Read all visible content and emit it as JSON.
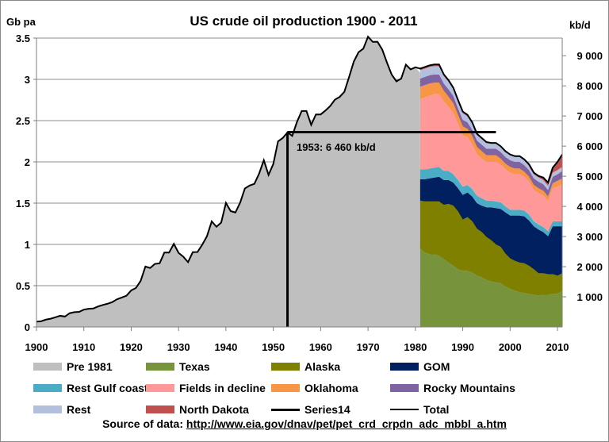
{
  "chart_data": {
    "type": "area",
    "title": "US crude oil production 1900 - 2011",
    "ylabel_left": "Gb pa",
    "ylabel_right": "kb/d",
    "xlim": [
      1900,
      2011
    ],
    "ylim_left": [
      0,
      3.5
    ],
    "ylim_right": [
      0,
      9585
    ],
    "x_ticks": [
      "1900",
      "1910",
      "1920",
      "1930",
      "1940",
      "1950",
      "1960",
      "1970",
      "1980",
      "1990",
      "2000",
      "2010"
    ],
    "y_ticks_left": [
      "0",
      "0.5",
      "1",
      "1.5",
      "2",
      "2.5",
      "3",
      "3.5"
    ],
    "y_ticks_right": [
      "1 000",
      "2 000",
      "3 000",
      "4 000",
      "5 000",
      "6 000",
      "7 000",
      "8 000",
      "9 000"
    ],
    "grid": true,
    "legend_position": "bottom",
    "colors": {
      "pre_1981": "#bfbfbf",
      "texas": "#77933c",
      "alaska": "#7f7f00",
      "gom": "#002060",
      "rest_gulf_coast": "#4bacc6",
      "fields_in_decline": "#ff9999",
      "oklahoma": "#f79646",
      "rocky_mountains": "#8064a2",
      "rest": "#b3bfdd",
      "north_dakota": "#c0504d",
      "series14": "#000000",
      "total": "#000000"
    },
    "pre1981": {
      "x": [
        1900,
        1901,
        1902,
        1903,
        1904,
        1905,
        1906,
        1907,
        1908,
        1909,
        1910,
        1911,
        1912,
        1913,
        1914,
        1915,
        1916,
        1917,
        1918,
        1919,
        1920,
        1921,
        1922,
        1923,
        1924,
        1925,
        1926,
        1927,
        1928,
        1929,
        1930,
        1931,
        1932,
        1933,
        1934,
        1935,
        1936,
        1937,
        1938,
        1939,
        1940,
        1941,
        1942,
        1943,
        1944,
        1945,
        1946,
        1947,
        1948,
        1949,
        1950,
        1951,
        1952,
        1953,
        1954,
        1955,
        1956,
        1957,
        1958,
        1959,
        1960,
        1961,
        1962,
        1963,
        1964,
        1965,
        1966,
        1967,
        1968,
        1969,
        1970,
        1971,
        1972,
        1973,
        1974,
        1975,
        1976,
        1977,
        1978,
        1979,
        1980
      ],
      "values": [
        0.064,
        0.069,
        0.089,
        0.1,
        0.117,
        0.135,
        0.126,
        0.166,
        0.179,
        0.183,
        0.21,
        0.22,
        0.223,
        0.248,
        0.266,
        0.281,
        0.301,
        0.335,
        0.356,
        0.378,
        0.443,
        0.472,
        0.558,
        0.732,
        0.714,
        0.764,
        0.771,
        0.901,
        0.901,
        1.007,
        0.898,
        0.851,
        0.785,
        0.906,
        0.908,
        0.997,
        1.1,
        1.279,
        1.214,
        1.265,
        1.503,
        1.404,
        1.387,
        1.506,
        1.678,
        1.714,
        1.734,
        1.857,
        2.02,
        1.842,
        1.974,
        2.248,
        2.29,
        2.357,
        2.315,
        2.484,
        2.617,
        2.617,
        2.449,
        2.575,
        2.575,
        2.622,
        2.676,
        2.753,
        2.787,
        2.849,
        3.028,
        3.216,
        3.329,
        3.372,
        3.517,
        3.454,
        3.455,
        3.361,
        3.203,
        3.057,
        2.976,
        3.009,
        3.178,
        3.121,
        3.146
      ]
    },
    "stack_x": [
      1981,
      1982,
      1983,
      1984,
      1985,
      1986,
      1987,
      1988,
      1989,
      1990,
      1991,
      1992,
      1993,
      1994,
      1995,
      1996,
      1997,
      1998,
      1999,
      2000,
      2001,
      2002,
      2003,
      2004,
      2005,
      2006,
      2007,
      2008,
      2009,
      2010,
      2011
    ],
    "series": [
      {
        "name": "Texas",
        "values": [
          0.95,
          0.9,
          0.88,
          0.88,
          0.86,
          0.82,
          0.78,
          0.74,
          0.7,
          0.68,
          0.68,
          0.66,
          0.62,
          0.6,
          0.57,
          0.55,
          0.54,
          0.53,
          0.49,
          0.46,
          0.44,
          0.42,
          0.41,
          0.4,
          0.39,
          0.38,
          0.39,
          0.39,
          0.4,
          0.4,
          0.44
        ]
      },
      {
        "name": "Alaska",
        "values": [
          0.58,
          0.62,
          0.64,
          0.64,
          0.66,
          0.66,
          0.71,
          0.73,
          0.7,
          0.62,
          0.65,
          0.62,
          0.57,
          0.55,
          0.52,
          0.5,
          0.46,
          0.44,
          0.4,
          0.37,
          0.36,
          0.36,
          0.36,
          0.34,
          0.31,
          0.27,
          0.26,
          0.25,
          0.24,
          0.22,
          0.21
        ]
      },
      {
        "name": "GOM",
        "values": [
          0.26,
          0.27,
          0.28,
          0.29,
          0.3,
          0.3,
          0.29,
          0.28,
          0.28,
          0.3,
          0.3,
          0.3,
          0.31,
          0.32,
          0.36,
          0.4,
          0.44,
          0.46,
          0.5,
          0.52,
          0.55,
          0.57,
          0.57,
          0.55,
          0.52,
          0.53,
          0.5,
          0.46,
          0.58,
          0.6,
          0.57
        ]
      },
      {
        "name": "Rest Gulf coast",
        "values": [
          0.12,
          0.12,
          0.12,
          0.12,
          0.12,
          0.11,
          0.11,
          0.1,
          0.1,
          0.1,
          0.09,
          0.09,
          0.09,
          0.09,
          0.08,
          0.08,
          0.08,
          0.08,
          0.07,
          0.07,
          0.07,
          0.07,
          0.07,
          0.07,
          0.06,
          0.06,
          0.06,
          0.06,
          0.06,
          0.06,
          0.06
        ]
      },
      {
        "name": "Fields in decline",
        "values": [
          0.85,
          0.87,
          0.88,
          0.89,
          0.88,
          0.84,
          0.78,
          0.74,
          0.68,
          0.62,
          0.58,
          0.54,
          0.5,
          0.48,
          0.47,
          0.47,
          0.48,
          0.46,
          0.45,
          0.45,
          0.43,
          0.43,
          0.41,
          0.4,
          0.38,
          0.38,
          0.38,
          0.36,
          0.4,
          0.42,
          0.45
        ]
      },
      {
        "name": "Oklahoma",
        "values": [
          0.15,
          0.15,
          0.15,
          0.14,
          0.14,
          0.13,
          0.12,
          0.12,
          0.11,
          0.11,
          0.1,
          0.1,
          0.09,
          0.09,
          0.08,
          0.08,
          0.08,
          0.07,
          0.07,
          0.07,
          0.07,
          0.07,
          0.06,
          0.06,
          0.06,
          0.06,
          0.06,
          0.06,
          0.06,
          0.07,
          0.07
        ]
      },
      {
        "name": "Rocky Mountains",
        "values": [
          0.1,
          0.1,
          0.1,
          0.1,
          0.1,
          0.09,
          0.09,
          0.09,
          0.08,
          0.08,
          0.08,
          0.08,
          0.08,
          0.08,
          0.08,
          0.08,
          0.08,
          0.08,
          0.08,
          0.08,
          0.08,
          0.08,
          0.08,
          0.08,
          0.08,
          0.08,
          0.08,
          0.08,
          0.08,
          0.08,
          0.09
        ]
      },
      {
        "name": "Rest",
        "values": [
          0.1,
          0.1,
          0.1,
          0.1,
          0.1,
          0.09,
          0.09,
          0.08,
          0.08,
          0.08,
          0.07,
          0.07,
          0.07,
          0.07,
          0.07,
          0.06,
          0.06,
          0.06,
          0.06,
          0.06,
          0.06,
          0.06,
          0.06,
          0.05,
          0.05,
          0.05,
          0.05,
          0.05,
          0.05,
          0.05,
          0.05
        ]
      },
      {
        "name": "North Dakota",
        "values": [
          0.02,
          0.02,
          0.02,
          0.02,
          0.02,
          0.02,
          0.02,
          0.02,
          0.02,
          0.02,
          0.02,
          0.02,
          0.01,
          0.01,
          0.01,
          0.01,
          0.01,
          0.01,
          0.01,
          0.01,
          0.01,
          0.01,
          0.01,
          0.02,
          0.02,
          0.02,
          0.03,
          0.04,
          0.06,
          0.1,
          0.15
        ]
      }
    ],
    "annotation": {
      "label": "1953: 6 460 kb/d",
      "year": 1953,
      "level_kbd": 6460,
      "level_gb": 2.36,
      "end_year": 1997
    }
  },
  "legend": [
    [
      "Pre 1981",
      "Texas",
      "Alaska",
      "GOM"
    ],
    [
      "Rest Gulf coast",
      "Fields in decline",
      "Oklahoma",
      "Rocky Mountains"
    ],
    [
      "Rest",
      "North Dakota",
      "Series14",
      "Total"
    ]
  ],
  "source": {
    "prefix": "Source of data: ",
    "link": "http://www.eia.gov/dnav/pet/pet_crd_crpdn_adc_mbbl_a.htm"
  }
}
